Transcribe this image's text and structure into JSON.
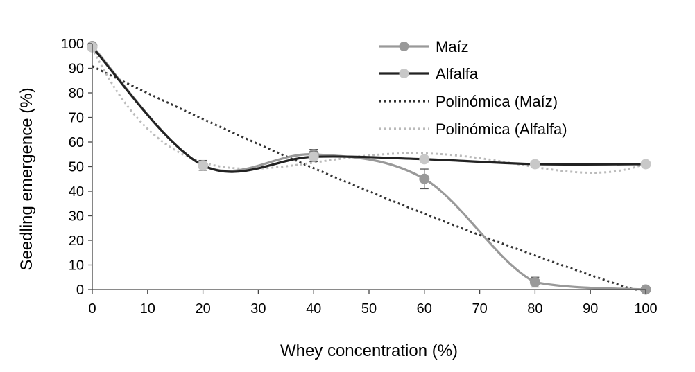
{
  "chart_data": {
    "type": "line",
    "title": "",
    "xlabel": "Whey concentration (%)",
    "ylabel": "Seedling emergence  (%)",
    "xlim": [
      0,
      100
    ],
    "ylim": [
      0,
      100
    ],
    "xticks": [
      0,
      10,
      20,
      30,
      40,
      50,
      60,
      70,
      80,
      90,
      100
    ],
    "yticks": [
      0,
      10,
      20,
      30,
      40,
      50,
      60,
      70,
      80,
      90,
      100
    ],
    "grid": false,
    "legend_position": "top-right",
    "x": [
      0,
      20,
      40,
      60,
      80,
      100
    ],
    "series": [
      {
        "name": "Maíz",
        "values": [
          99,
          50.5,
          55,
          45,
          3,
          0
        ],
        "errors": [
          1,
          2,
          2,
          4,
          2,
          0
        ],
        "color": "#999999",
        "marker": "circle",
        "style": "solid"
      },
      {
        "name": "Alfalfa",
        "values": [
          98.5,
          50.5,
          54,
          53,
          51,
          51
        ],
        "errors": [
          1,
          2,
          2,
          1,
          1,
          0
        ],
        "color": "#222222",
        "marker_color": "#c8c8c8",
        "marker": "circle",
        "style": "solid"
      }
    ],
    "trendlines": [
      {
        "name": "Polinómica (Maíz)",
        "of": "Maíz",
        "color": "#333333",
        "style": "dotted"
      },
      {
        "name": "Polinómica (Alfalfa)",
        "of": "Alfalfa",
        "color": "#bbbbbb",
        "style": "dotted"
      }
    ]
  }
}
